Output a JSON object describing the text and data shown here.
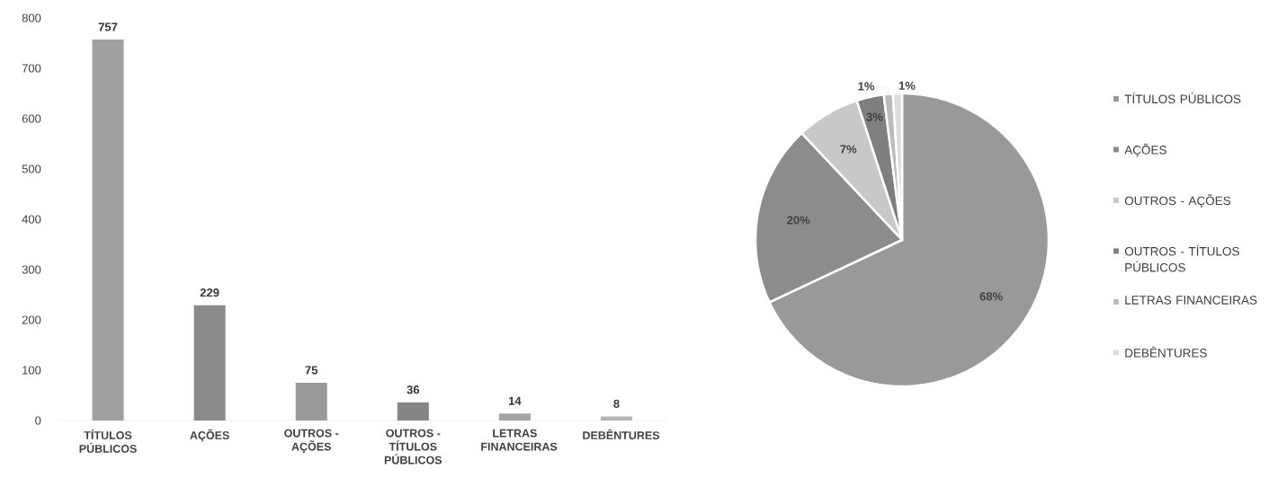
{
  "chart_data": [
    {
      "type": "bar",
      "categories": [
        "TÍTULOS PÚBLICOS",
        "AÇÕES",
        "OUTROS - AÇÕES",
        "OUTROS - TÍTULOS PÚBLICOS",
        "LETRAS FINANCEIRAS",
        "DEBÊNTURES"
      ],
      "values": [
        757,
        229,
        75,
        36,
        14,
        8
      ],
      "colors": [
        "#a0a0a0",
        "#8a8a8a",
        "#9a9a9a",
        "#858585",
        "#a5a5a5",
        "#b5b5b5"
      ],
      "ylim": [
        0,
        800
      ],
      "yticks": [
        0,
        100,
        200,
        300,
        400,
        500,
        600,
        700,
        800
      ],
      "data_labels": true,
      "grid": false
    },
    {
      "type": "pie",
      "categories": [
        "TÍTULOS PÚBLICOS",
        "AÇÕES",
        "OUTROS - AÇÕES",
        "OUTROS - TÍTULOS PÚBLICOS",
        "LETRAS FINANCEIRAS",
        "DEBÊNTURES"
      ],
      "values": [
        68,
        20,
        7,
        3,
        1,
        1
      ],
      "colors": [
        "#999999",
        "#8c8c8c",
        "#c8c8c8",
        "#7f7f7f",
        "#bbbbbb",
        "#dddddd"
      ],
      "value_labels": [
        "68%",
        "20%",
        "7%",
        "3%",
        "1%",
        "1%"
      ],
      "legend": "right"
    }
  ]
}
